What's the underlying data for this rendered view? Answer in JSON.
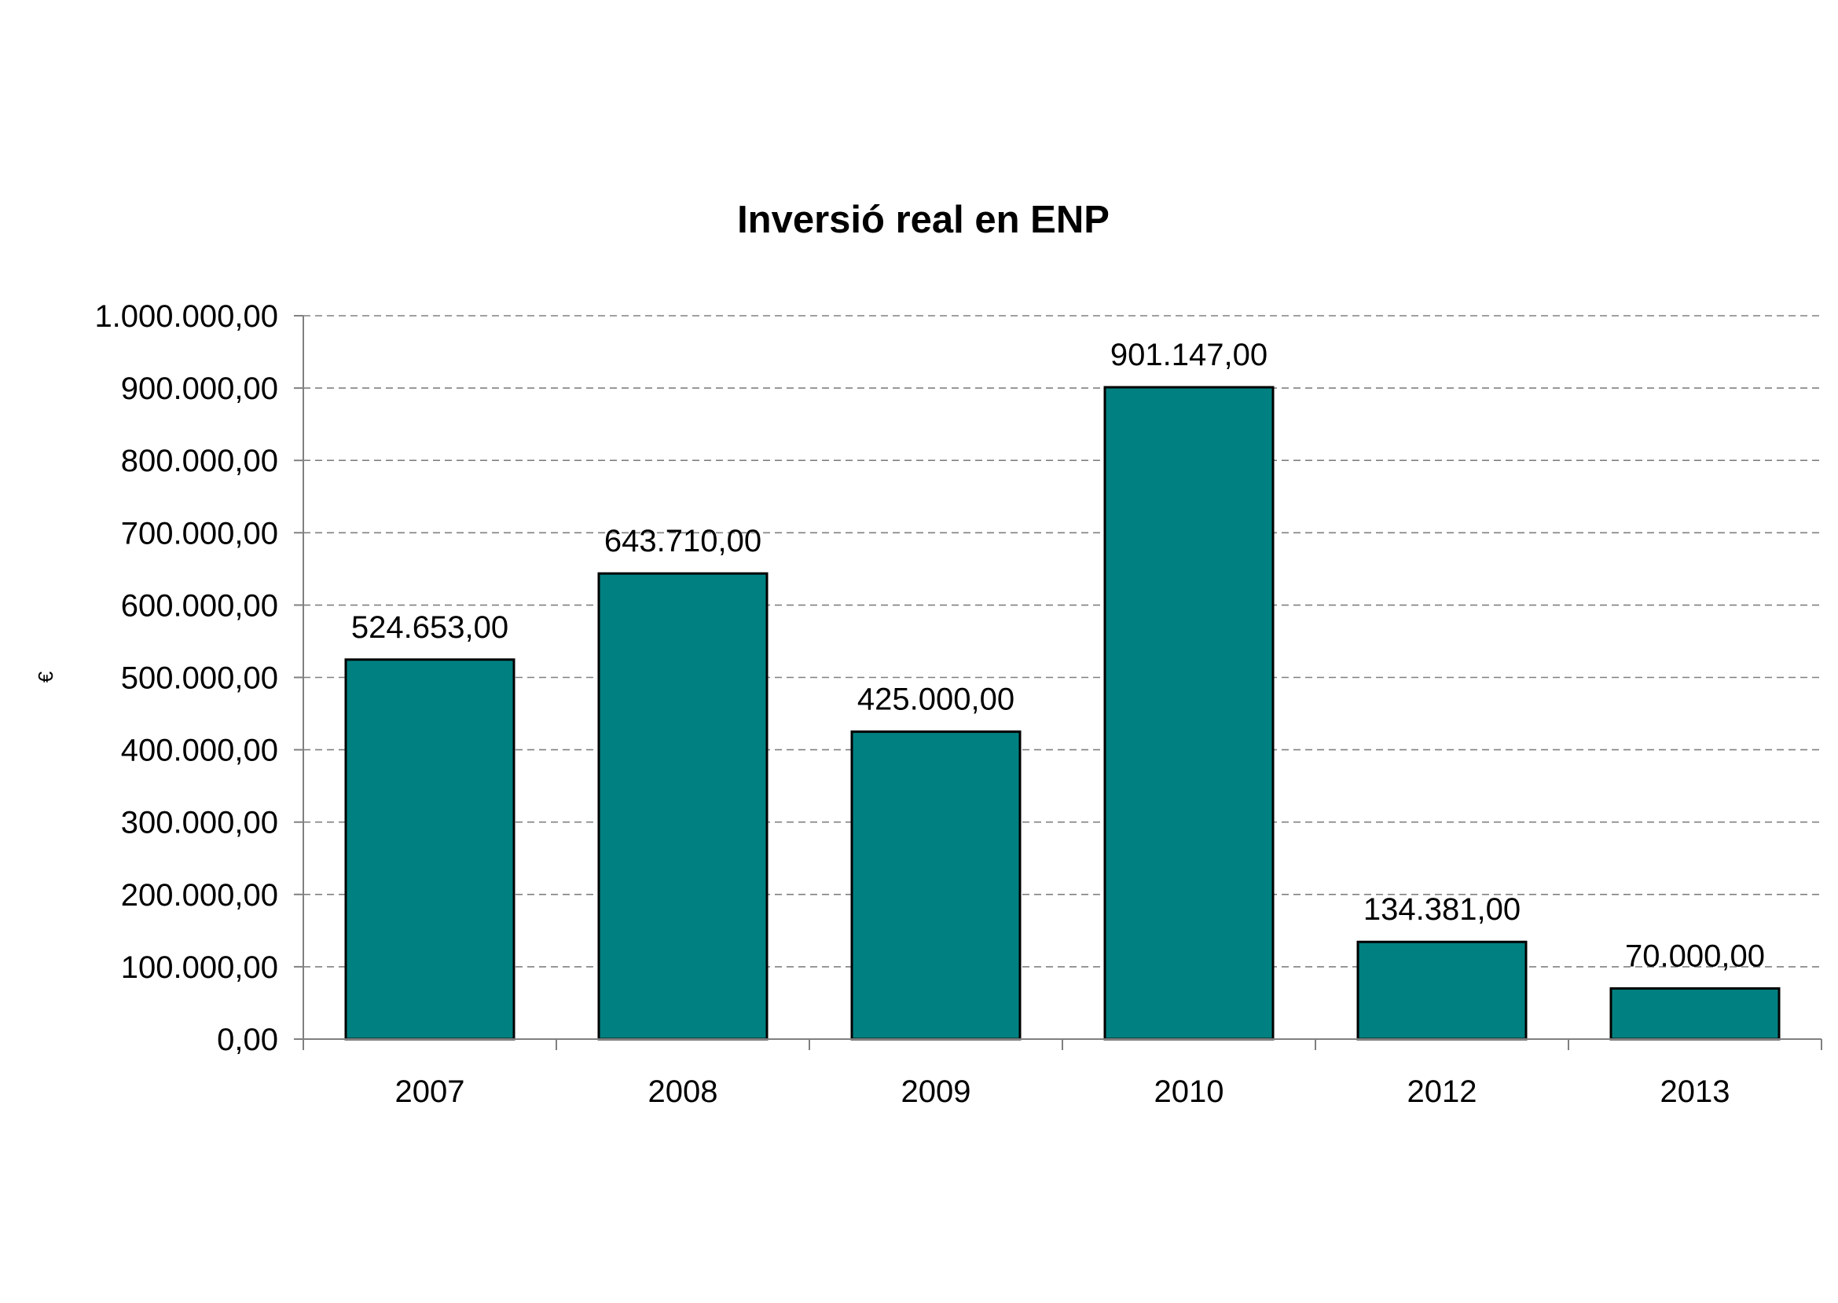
{
  "chart_data": {
    "type": "bar",
    "title": "Inversió real en ENP",
    "xlabel": "",
    "ylabel": "€",
    "categories": [
      "2007",
      "2008",
      "2009",
      "2010",
      "2012",
      "2013"
    ],
    "values": [
      524653,
      643710,
      425000,
      901147,
      134381,
      70000
    ],
    "value_labels": [
      "524.653,00",
      "643.710,00",
      "425.000,00",
      "901.147,00",
      "134.381,00",
      "70.000,00"
    ],
    "ylim": [
      0,
      1000000
    ],
    "yticks": [
      0,
      100000,
      200000,
      300000,
      400000,
      500000,
      600000,
      700000,
      800000,
      900000,
      1000000
    ],
    "ytick_labels": [
      "0,00",
      "100.000,00",
      "200.000,00",
      "300.000,00",
      "400.000,00",
      "500.000,00",
      "600.000,00",
      "700.000,00",
      "800.000,00",
      "900.000,00",
      "1.000.000,00"
    ],
    "grid": true,
    "legend": "none",
    "colors": {
      "bar_fill": "#008080",
      "bar_stroke": "#000000",
      "grid": "#808080",
      "axis": "#808080"
    }
  }
}
